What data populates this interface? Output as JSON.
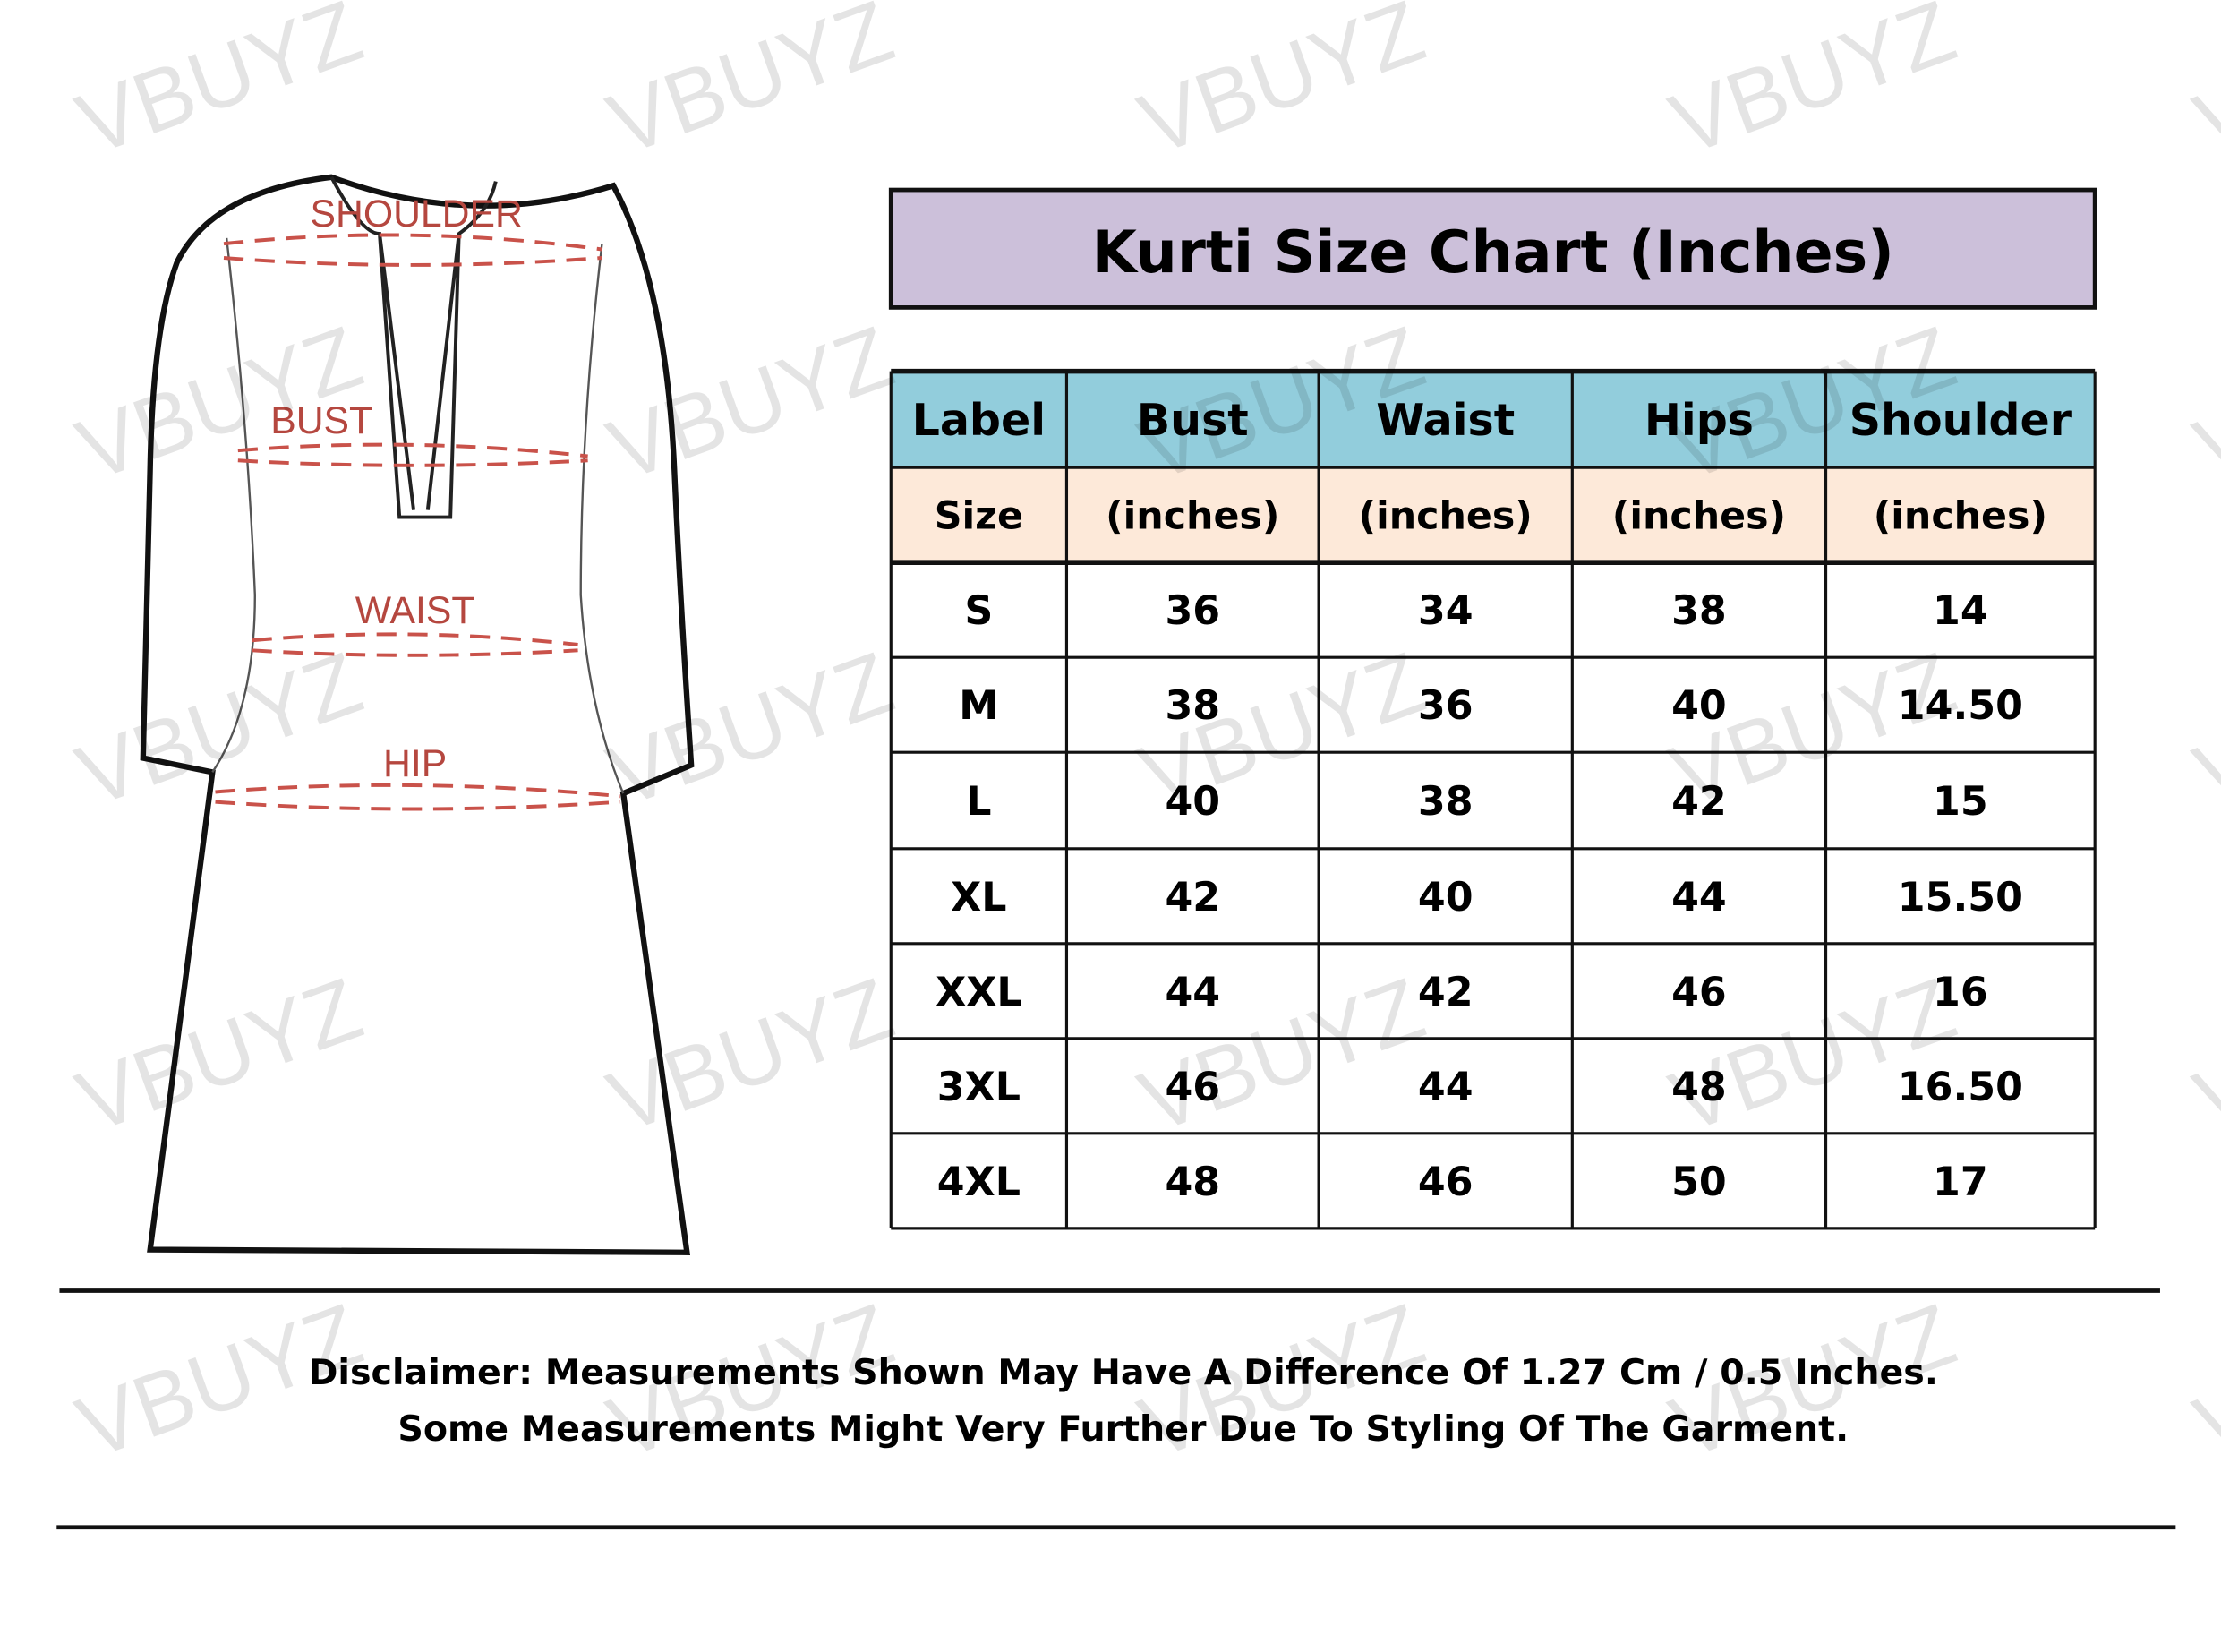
{
  "watermark": "VBUYZ",
  "diagram": {
    "labels": {
      "shoulder": "SHOULDER",
      "bust": "BUST",
      "waist": "WAIST",
      "hip": "HIP"
    },
    "measure_color": "#c9524a"
  },
  "chart": {
    "title": "Kurti Size Chart (Inches)",
    "title_bg": "#ccc0da",
    "header_bg": "#92cddc",
    "subheader_bg": "#fde9d9",
    "headers": [
      "Label",
      "Bust",
      "Waist",
      "Hips",
      "Shoulder"
    ],
    "subheaders": [
      "Size",
      "(inches)",
      "(inches)",
      "(inches)",
      "(inches)"
    ],
    "rows": [
      [
        "S",
        "36",
        "34",
        "38",
        "14"
      ],
      [
        "M",
        "38",
        "36",
        "40",
        "14.50"
      ],
      [
        "L",
        "40",
        "38",
        "42",
        "15"
      ],
      [
        "XL",
        "42",
        "40",
        "44",
        "15.50"
      ],
      [
        "XXL",
        "44",
        "42",
        "46",
        "16"
      ],
      [
        "3XL",
        "46",
        "44",
        "48",
        "16.50"
      ],
      [
        "4XL",
        "48",
        "46",
        "50",
        "17"
      ]
    ]
  },
  "disclaimer": {
    "line1": "Disclaimer: Measurements Shown May Have A Difference Of 1.27 Cm / 0.5 Inches.",
    "line2": "Some Measurements Might Very Further Due To Styling Of The Garment."
  }
}
